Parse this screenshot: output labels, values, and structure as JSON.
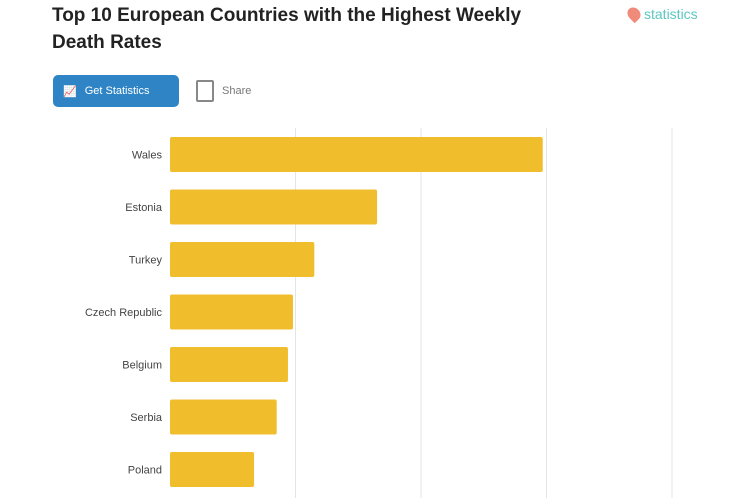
{
  "header": {
    "title": "Top 10 European Countries with the Highest Weekly Death Rates",
    "logo": "statistics"
  },
  "toolbar": {
    "primary_label": "Get Statistics",
    "secondary_label": "Share"
  },
  "colors": {
    "bar": "#f0bd2c",
    "primary": "#2e84c4",
    "logo": "#5cc6c0"
  },
  "chart_data": {
    "type": "bar",
    "orientation": "horizontal",
    "grid": true,
    "categories": [
      "Wales",
      "Estonia",
      "Turkey",
      "Czech Republic",
      "Belgium",
      "Serbia",
      "Poland"
    ],
    "values": [
      2.97,
      1.65,
      1.15,
      0.98,
      0.94,
      0.85,
      0.67
    ],
    "xlim": [
      0,
      4
    ]
  }
}
